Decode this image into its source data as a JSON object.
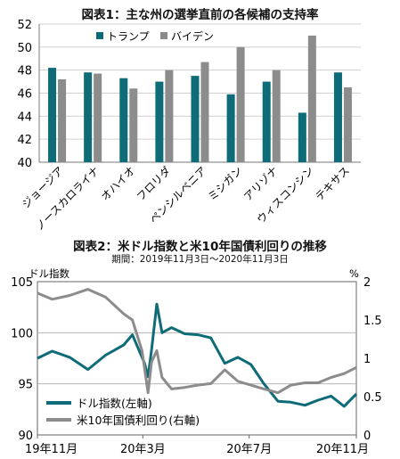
{
  "chart1": {
    "title": "図表1：主な州の選挙直前の各候補の支持率",
    "colors": {
      "trump": "#0e6b78",
      "biden": "#8c8c8c"
    },
    "chart_data": {
      "type": "bar",
      "categories": [
        "ジョージア",
        "ノースカロライナ",
        "オハイオ",
        "フロリダ",
        "ペンシルベニア",
        "ミシガン",
        "アリゾナ",
        "ウィスコンシン",
        "テキサス"
      ],
      "series": [
        {
          "name": "トランプ",
          "values": [
            48.2,
            47.8,
            47.3,
            47.0,
            47.5,
            45.9,
            47.0,
            44.3,
            47.8
          ]
        },
        {
          "name": "バイデン",
          "values": [
            47.2,
            47.7,
            46.4,
            48.0,
            48.7,
            50.0,
            48.0,
            51.0,
            46.5
          ]
        }
      ],
      "ylim": [
        40,
        52
      ],
      "yticks": [
        40,
        42,
        44,
        46,
        48,
        50,
        52
      ],
      "legend": "top"
    }
  },
  "chart2": {
    "title": "図表2：米ドル指数と米10年国債利回りの推移",
    "subtitle": "期間：2019年11月3日～2020年11月3日",
    "left_unit": "ドル指数",
    "right_unit": "%",
    "colors": {
      "dollar": "#0e6b78",
      "yield": "#8c8c8c"
    },
    "chart_data": {
      "type": "line",
      "x_range": [
        "2019-11-03",
        "2020-11-03"
      ],
      "xticks": [
        "19年11月",
        "20年3月",
        "20年7月",
        "20年11月"
      ],
      "ylim_left": [
        90,
        105
      ],
      "yticks_left": [
        90,
        95,
        100,
        105
      ],
      "ylim_right": [
        0,
        2
      ],
      "yticks_right": [
        "0",
        "0.5",
        "1",
        "1.5",
        "2"
      ],
      "legend": "bottom-left",
      "series": [
        {
          "name": "ドル指数(左軸)",
          "axis": "left",
          "x": [
            "2019-11-03",
            "2019-11-20",
            "2019-12-10",
            "2019-12-31",
            "2020-01-20",
            "2020-02-10",
            "2020-02-20",
            "2020-03-05",
            "2020-03-09",
            "2020-03-13",
            "2020-03-19",
            "2020-03-25",
            "2020-04-05",
            "2020-04-20",
            "2020-05-05",
            "2020-05-20",
            "2020-06-05",
            "2020-06-20",
            "2020-07-05",
            "2020-07-20",
            "2020-08-05",
            "2020-08-20",
            "2020-09-05",
            "2020-09-20",
            "2020-10-05",
            "2020-10-20",
            "2020-11-03"
          ],
          "values": [
            97.5,
            98.2,
            97.6,
            96.4,
            97.8,
            98.8,
            99.8,
            97.0,
            95.7,
            98.3,
            102.8,
            100.0,
            100.5,
            99.9,
            99.8,
            99.5,
            97.0,
            97.6,
            96.9,
            95.0,
            93.3,
            93.2,
            92.9,
            93.4,
            93.8,
            92.8,
            94.0
          ]
        },
        {
          "name": "米10年国債利回り(右軸)",
          "axis": "right",
          "x": [
            "2019-11-03",
            "2019-11-20",
            "2019-12-10",
            "2019-12-31",
            "2020-01-20",
            "2020-02-10",
            "2020-02-20",
            "2020-03-02",
            "2020-03-09",
            "2020-03-13",
            "2020-03-19",
            "2020-03-25",
            "2020-04-05",
            "2020-04-20",
            "2020-05-05",
            "2020-05-20",
            "2020-06-05",
            "2020-06-20",
            "2020-07-05",
            "2020-07-20",
            "2020-08-05",
            "2020-08-20",
            "2020-09-05",
            "2020-09-20",
            "2020-10-05",
            "2020-10-20",
            "2020-11-03"
          ],
          "values": [
            1.85,
            1.77,
            1.82,
            1.9,
            1.8,
            1.58,
            1.5,
            1.1,
            0.55,
            0.95,
            1.1,
            0.75,
            0.6,
            0.62,
            0.65,
            0.67,
            0.85,
            0.7,
            0.65,
            0.6,
            0.55,
            0.65,
            0.68,
            0.68,
            0.75,
            0.8,
            0.88
          ]
        }
      ]
    }
  }
}
